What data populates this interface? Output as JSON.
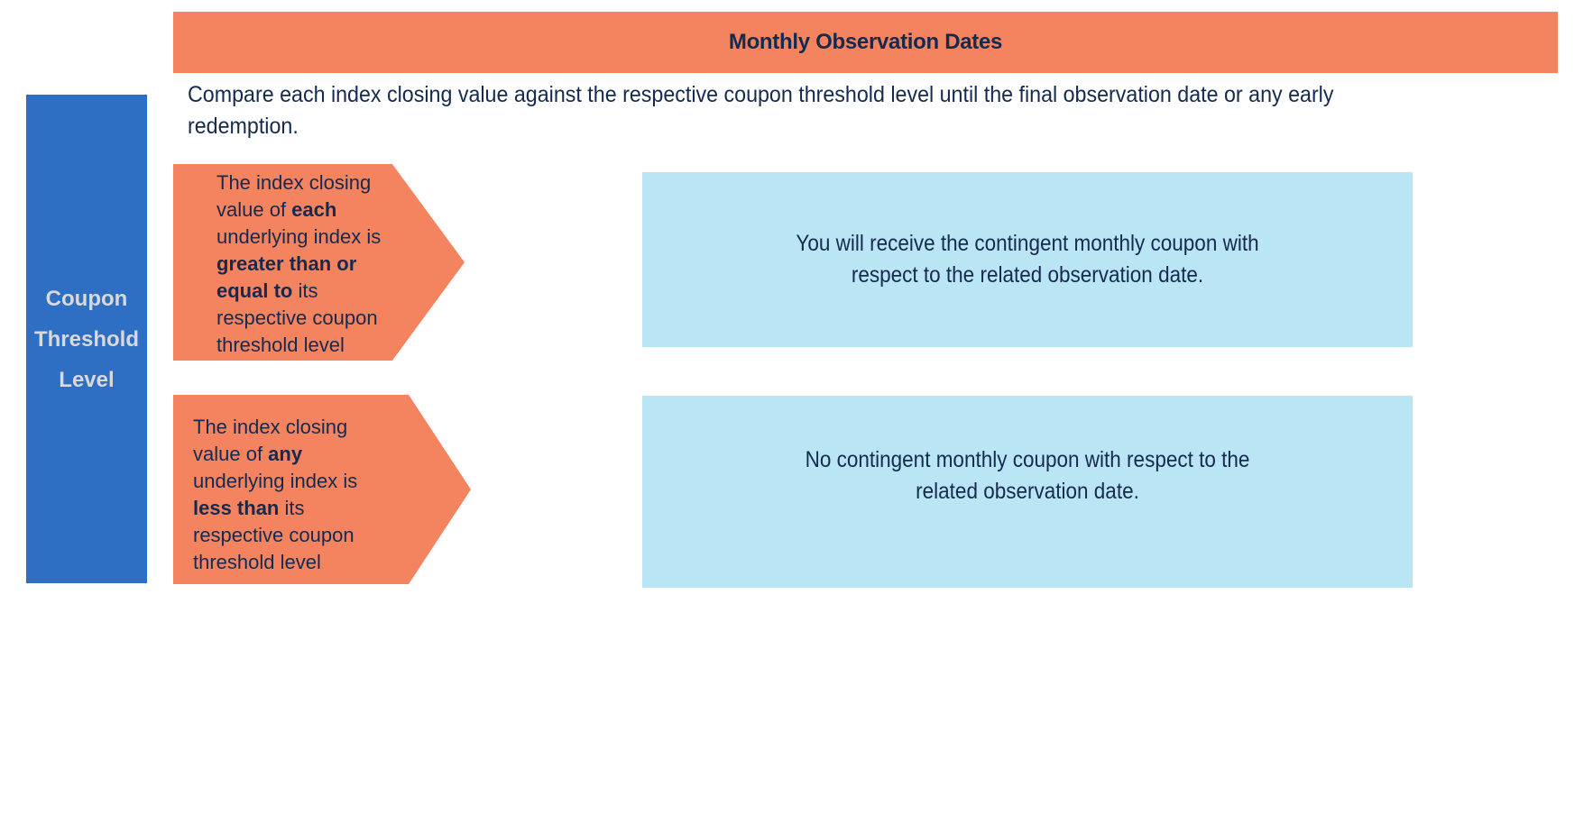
{
  "colors": {
    "salmon": "#F4845F",
    "bar_blue": "#2E6EC3",
    "outcome_light_blue": "#BAE5F4",
    "text_navy": "#152A4E",
    "bar_label_gray": "#D9D9D9",
    "background": "#FFFFFF"
  },
  "banner": {
    "title": "Monthly Observation Dates"
  },
  "intro": {
    "lines": [
      "Compare each index closing value against the respective coupon threshold level until the final observation date or any early",
      "redemption."
    ]
  },
  "side_label": {
    "lines": [
      "Coupon",
      "Threshold",
      "Level"
    ]
  },
  "branches": [
    {
      "condition_lines": [
        "The index closing",
        [
          {
            "t": "value of "
          },
          {
            "t": "each",
            "b": true
          }
        ],
        "underlying index is",
        [
          {
            "t": "greater than or",
            "b": true
          }
        ],
        [
          {
            "t": "equal to ",
            "b": true
          },
          {
            "t": "its"
          }
        ],
        "respective coupon",
        "threshold level"
      ],
      "outcome_lines": [
        "You will receive the contingent monthly coupon with",
        "respect to the related observation date."
      ]
    },
    {
      "condition_lines": [
        "The index closing",
        [
          {
            "t": "value of "
          },
          {
            "t": "any",
            "b": true
          }
        ],
        "underlying index is",
        [
          {
            "t": "less than ",
            "b": true
          },
          {
            "t": "its"
          }
        ],
        "respective coupon",
        "threshold level"
      ],
      "outcome_lines": [
        "No contingent monthly coupon with respect to the",
        "related observation date."
      ]
    }
  ]
}
